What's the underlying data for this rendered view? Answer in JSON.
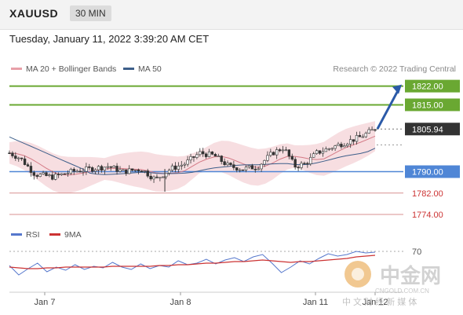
{
  "header": {
    "symbol": "XAUUSD",
    "interval": "30 MIN",
    "datetime": "Tuesday, January 11, 2022 3:39:20 AM CET"
  },
  "colors": {
    "up_level": "#6aa832",
    "current": "#333333",
    "pivot": "#4f86d6",
    "down_level": "#cc3333",
    "ma20_band": "#e8a0a8",
    "ma50": "#3e5f8a",
    "rsi": "#5577cc",
    "rsi_ma": "#cc3333",
    "arrow": "#2b5aa8"
  },
  "chart_data": [
    {
      "type": "candlestick",
      "legend": [
        {
          "name": "MA 20 + Bollinger Bands",
          "color": "#e8a0a8"
        },
        {
          "name": "MA 50",
          "color": "#3e5f8a"
        }
      ],
      "attribution": "Research © 2022 Trading Central",
      "x_ticks": [
        "Jan 7",
        "Jan 8",
        "Jan 11",
        "Jan 12"
      ],
      "ylim": [
        1769,
        1826
      ],
      "levels": [
        {
          "value": 1822.0,
          "label": "1822.00",
          "kind": "resistance"
        },
        {
          "value": 1815.0,
          "label": "1815.00",
          "kind": "resistance"
        },
        {
          "value": 1805.94,
          "label": "1805.94",
          "kind": "current"
        },
        {
          "value": 1790.0,
          "label": "1790.00",
          "kind": "pivot"
        },
        {
          "value": 1782.0,
          "label": "1782.00",
          "kind": "support"
        },
        {
          "value": 1774.0,
          "label": "1774.00",
          "kind": "support"
        }
      ],
      "price_path": [
        [
          0.0,
          1797
        ],
        [
          0.03,
          1795
        ],
        [
          0.07,
          1789
        ],
        [
          0.12,
          1788
        ],
        [
          0.17,
          1790
        ],
        [
          0.22,
          1791
        ],
        [
          0.27,
          1792
        ],
        [
          0.31,
          1790
        ],
        [
          0.36,
          1791
        ],
        [
          0.4,
          1787
        ],
        [
          0.44,
          1791
        ],
        [
          0.48,
          1793
        ],
        [
          0.52,
          1797
        ],
        [
          0.56,
          1796
        ],
        [
          0.6,
          1792
        ],
        [
          0.64,
          1791
        ],
        [
          0.68,
          1792
        ],
        [
          0.72,
          1797
        ],
        [
          0.75,
          1799
        ],
        [
          0.78,
          1792
        ],
        [
          0.81,
          1793
        ],
        [
          0.84,
          1797
        ],
        [
          0.88,
          1799
        ],
        [
          0.92,
          1801
        ],
        [
          0.96,
          1803
        ],
        [
          1.0,
          1806
        ]
      ],
      "forecast_target": 1822.0
    },
    {
      "type": "line",
      "legend": [
        {
          "name": "RSI",
          "color": "#5577cc"
        },
        {
          "name": "9MA",
          "color": "#cc3333"
        }
      ],
      "reference_level": {
        "value": 70,
        "label": "70"
      },
      "ylim": [
        20,
        80
      ],
      "series": [
        {
          "name": "RSI",
          "values": [
            52,
            40,
            48,
            55,
            44,
            50,
            46,
            53,
            47,
            51,
            49,
            56,
            50,
            47,
            54,
            48,
            52,
            50,
            58,
            53,
            55,
            60,
            54,
            59,
            62,
            57,
            63,
            66,
            55,
            43,
            50,
            58,
            54,
            61,
            67,
            64,
            66,
            70,
            68,
            69
          ]
        },
        {
          "name": "9MA",
          "values": [
            50,
            49,
            48,
            48,
            49,
            49,
            50,
            50,
            50,
            50,
            50,
            51,
            51,
            51,
            51,
            51,
            52,
            52,
            53,
            53,
            54,
            55,
            55,
            56,
            57,
            57,
            58,
            59,
            58,
            57,
            56,
            57,
            57,
            58,
            59,
            60,
            61,
            63,
            64,
            65
          ]
        }
      ]
    }
  ],
  "watermark": {
    "cn_name": "中金网",
    "domain": "CNGOLD.COM.CN",
    "slogan": "中 文 财 经 新 媒 体"
  }
}
